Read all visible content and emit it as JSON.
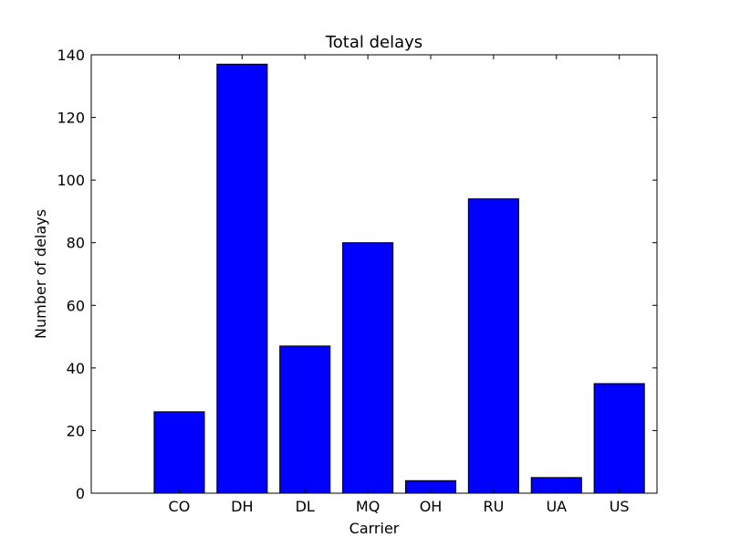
{
  "chart_data": {
    "type": "bar",
    "title": "Total delays",
    "xlabel": "Carrier",
    "ylabel": "Number of delays",
    "categories": [
      "CO",
      "DH",
      "DL",
      "MQ",
      "OH",
      "RU",
      "UA",
      "US"
    ],
    "values": [
      26,
      137,
      47,
      80,
      4,
      94,
      5,
      35
    ],
    "ylim": [
      0,
      140
    ],
    "yticks": [
      0,
      20,
      40,
      60,
      80,
      100,
      120,
      140
    ],
    "grid": false,
    "legend": "none",
    "bar_color": "#0000ff"
  }
}
